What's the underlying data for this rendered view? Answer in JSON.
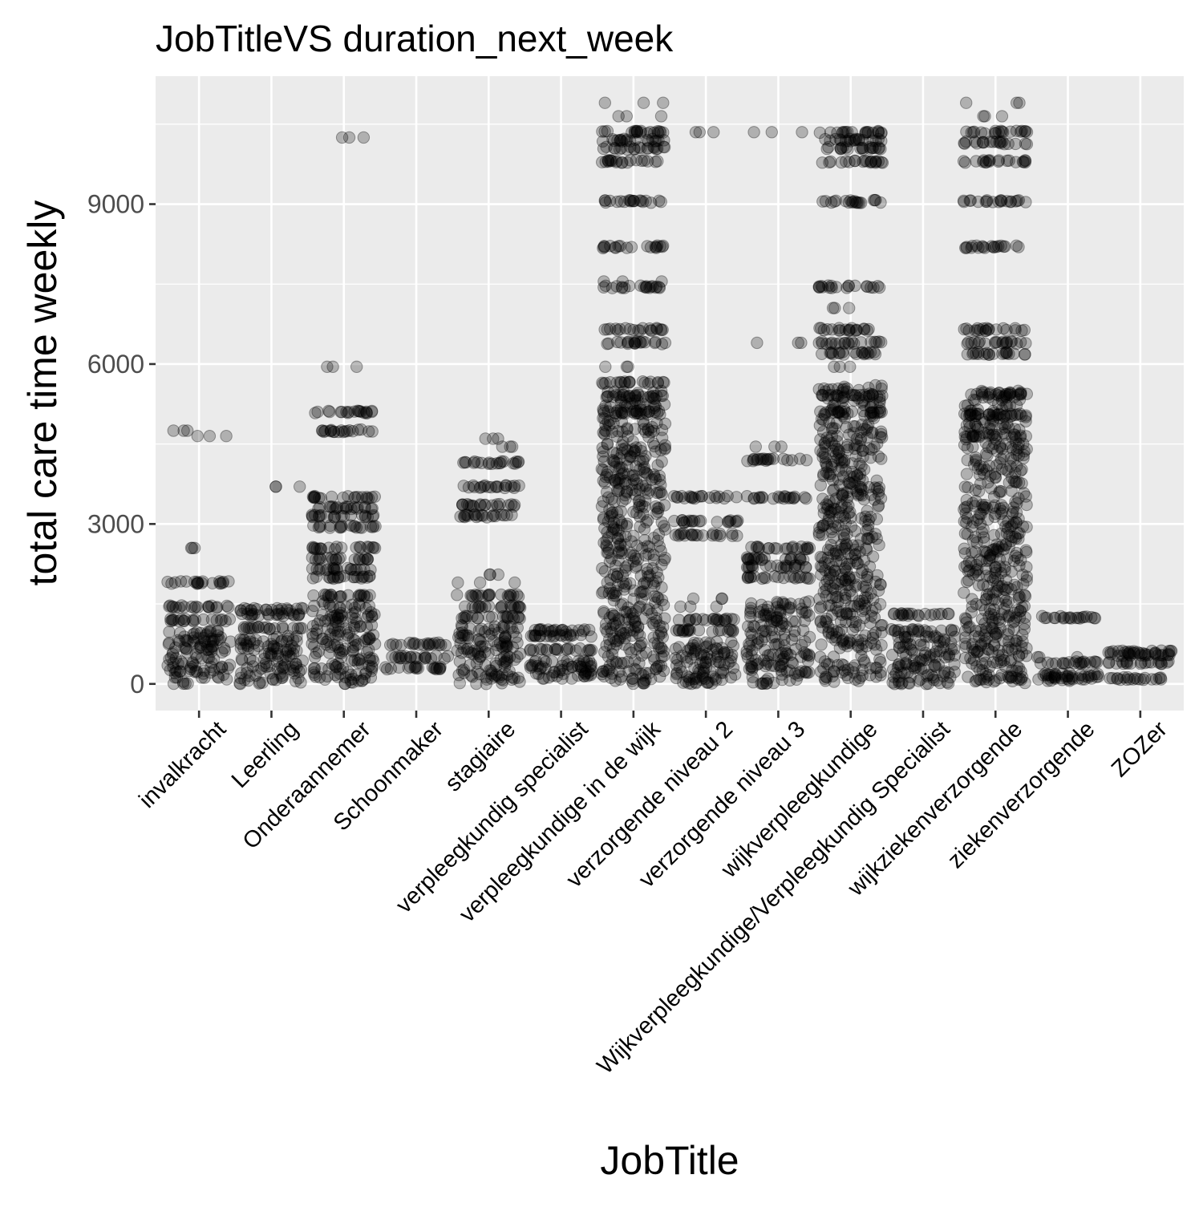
{
  "chart_data": {
    "type": "scatter",
    "title": "JobTitleVS duration_next_week",
    "xlabel": "JobTitle",
    "ylabel": "total care time weekly",
    "ylim": [
      -500,
      11400
    ],
    "yticks": [
      0,
      3000,
      6000,
      9000
    ],
    "grid": true,
    "jitter": true,
    "point_color": "#000000",
    "point_alpha": 0.25,
    "panel_background": "#EBEBEB",
    "grid_color": "#FFFFFF",
    "categories": [
      "invalkracht",
      "Leerling",
      "Onderaannemer",
      "Schoonmaker",
      "stagiaire",
      "verpleegkundig specialist",
      "verpleegkundige in de wijk",
      "verzorgende niveau 2",
      "verzorgende niveau 3",
      "wijkverpleegkundige",
      "Wijkverpleegkundige/Verpleegkundig Specialist",
      "wijkziekenverzorgende",
      "ziekenverzorgende",
      "ZOZer"
    ],
    "groups": [
      {
        "category": "invalkracht",
        "dense_range": [
          0,
          1000
        ],
        "levels": [
          1200,
          1450,
          1900
        ],
        "outliers": [
          2550,
          4650,
          4750
        ]
      },
      {
        "category": "Leerling",
        "dense_range": [
          0,
          900
        ],
        "levels": [
          1050,
          1300,
          1400
        ],
        "outliers": [
          3700
        ]
      },
      {
        "category": "Onderaannemer",
        "dense_range": [
          0,
          1550
        ],
        "levels": [
          1650,
          2000,
          2150,
          2350,
          2550,
          2950,
          3150,
          3300,
          3500,
          4750,
          5100
        ],
        "outliers": [
          5950,
          10250
        ]
      },
      {
        "category": "Schoonmaker",
        "dense_range": null,
        "levels": [
          300,
          500,
          750
        ],
        "outliers": []
      },
      {
        "category": "stagiaire",
        "dense_range": [
          0,
          1100
        ],
        "levels": [
          1250,
          1450,
          1650,
          3150,
          3350,
          3700,
          4150
        ],
        "outliers": [
          1900,
          2050,
          4450,
          4600
        ]
      },
      {
        "category": "verpleegkundig specialist",
        "dense_range": [
          100,
          450
        ],
        "levels": [
          650,
          900,
          1000
        ],
        "outliers": [
          100
        ]
      },
      {
        "category": "verpleegkundige in de wijk",
        "dense_range": [
          0,
          5500
        ],
        "levels": [
          5100,
          5400,
          5650,
          6400,
          6650,
          7450,
          8200,
          9050,
          9800,
          10050,
          10200,
          10350
        ],
        "outliers": [
          5950,
          7550,
          10650,
          10900
        ]
      },
      {
        "category": "verzorgende niveau 2",
        "dense_range": [
          0,
          800
        ],
        "levels": [
          1000,
          1200,
          2800,
          3050,
          3500
        ],
        "outliers": [
          1450,
          1600,
          10350
        ]
      },
      {
        "category": "verzorgende niveau 3",
        "dense_range": [
          0,
          1550
        ],
        "levels": [
          2000,
          2200,
          2350,
          2550,
          3500,
          4200
        ],
        "outliers": [
          4450,
          6400,
          10350
        ]
      },
      {
        "category": "wijkverpleegkundige",
        "dense_range": [
          0,
          5600
        ],
        "levels": [
          5100,
          5400,
          6200,
          6400,
          6650,
          7450,
          9050,
          9800,
          10050,
          10200,
          10350
        ],
        "outliers": [
          5950,
          7050
        ]
      },
      {
        "category": "Wijkverpleegkundige/Verpleegkundig Specialist",
        "dense_range": [
          0,
          900
        ],
        "levels": [
          1000,
          1300
        ],
        "outliers": [
          0
        ]
      },
      {
        "category": "wijkziekenverzorgende",
        "dense_range": [
          0,
          5500
        ],
        "levels": [
          4650,
          5050,
          5450,
          6200,
          6400,
          6650,
          8200,
          9050,
          9800,
          10150,
          10350
        ],
        "outliers": [
          10650,
          10900
        ]
      },
      {
        "category": "ziekenverzorgende",
        "dense_range": [
          50,
          200
        ],
        "levels": [
          400,
          1250
        ],
        "outliers": [
          500
        ]
      },
      {
        "category": "ZOZer",
        "dense_range": null,
        "levels": [
          100,
          400,
          550,
          600
        ],
        "outliers": []
      }
    ]
  }
}
